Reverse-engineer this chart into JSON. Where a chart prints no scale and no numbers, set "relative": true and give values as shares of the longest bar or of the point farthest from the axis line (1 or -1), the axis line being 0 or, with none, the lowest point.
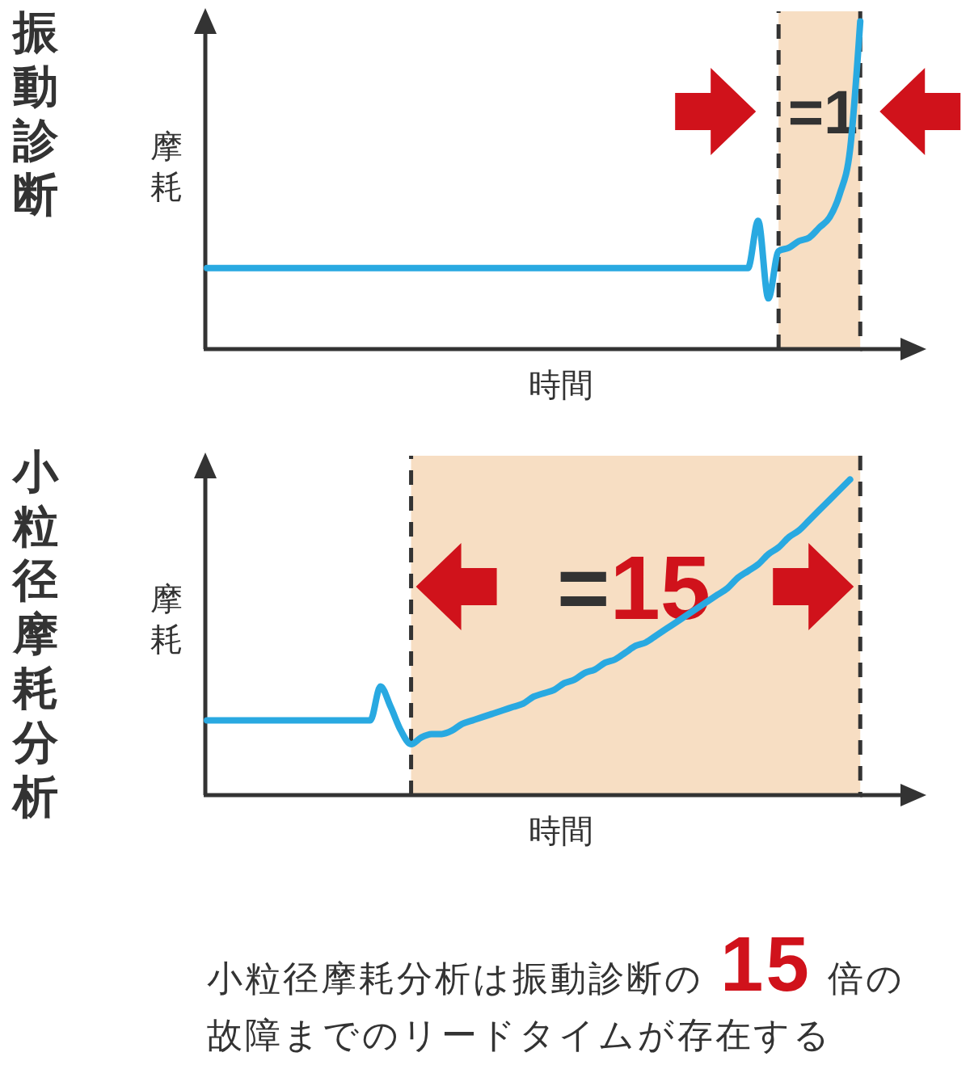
{
  "chart_data": [
    {
      "type": "line",
      "title": "振動診断",
      "xlabel": "時間",
      "ylabel": "摩耗",
      "relative": true,
      "categories": [
        null,
        null,
        null,
        null,
        null,
        null,
        null,
        null,
        null,
        null,
        null,
        null,
        null,
        null,
        null,
        null,
        null,
        null,
        null,
        null,
        null,
        null,
        null,
        null,
        null,
        null,
        null,
        null,
        null,
        null,
        null,
        null,
        null,
        null,
        null,
        null,
        null,
        null,
        null,
        null,
        null,
        null,
        null,
        null,
        null,
        null,
        null,
        null,
        null,
        null,
        null,
        null,
        null,
        null,
        null,
        null,
        null,
        null,
        null,
        null,
        null,
        null,
        null,
        null,
        null,
        null,
        null,
        null,
        null,
        null,
        null
      ],
      "series": [
        {
          "type": "area",
          "color": "#f7dec3",
          "values": [
            null,
            null,
            null,
            null,
            null,
            null,
            null,
            null,
            null,
            null,
            null,
            null,
            null,
            null,
            null,
            null,
            null,
            null,
            null,
            null,
            null,
            null,
            null,
            null,
            null,
            null,
            null,
            null,
            null,
            null,
            null,
            null,
            null,
            null,
            null,
            null,
            null,
            null,
            null,
            null,
            null,
            null,
            null,
            null,
            null,
            null,
            null,
            null,
            null,
            null,
            null,
            null,
            null,
            null,
            null,
            null,
            1,
            1,
            1,
            1,
            1,
            1,
            1,
            1,
            1,
            null,
            null,
            null,
            null,
            null,
            null
          ]
        },
        {
          "color": "#29a9e1",
          "values": [
            0.24,
            0.24,
            0.24,
            0.24,
            0.24,
            0.24,
            0.24,
            0.24,
            0.24,
            0.24,
            0.24,
            0.24,
            0.24,
            0.24,
            0.24,
            0.24,
            0.24,
            0.24,
            0.24,
            0.24,
            0.24,
            0.24,
            0.24,
            0.24,
            0.24,
            0.24,
            0.24,
            0.24,
            0.24,
            0.24,
            0.24,
            0.24,
            0.24,
            0.24,
            0.24,
            0.24,
            0.24,
            0.24,
            0.24,
            0.24,
            0.24,
            0.24,
            0.24,
            0.24,
            0.24,
            0.24,
            0.24,
            0.24,
            0.24,
            0.24,
            0.24,
            0.24,
            0.24,
            0.24,
            0.38,
            0.15,
            0.29,
            0.3,
            0.32,
            0.33,
            0.36,
            0.39,
            0.46,
            0.59,
            0.97,
            null,
            null,
            null,
            null,
            null,
            null
          ]
        }
      ],
      "annotations": [
        "=1"
      ]
    },
    {
      "type": "line",
      "title": "小粒径摩耗分析",
      "xlabel": "時間",
      "ylabel": "摩耗",
      "relative": true,
      "categories": [
        null,
        null,
        null,
        null,
        null,
        null,
        null,
        null,
        null,
        null,
        null,
        null,
        null,
        null,
        null,
        null,
        null,
        null,
        null,
        null,
        null,
        null,
        null,
        null,
        null,
        null,
        null,
        null,
        null,
        null,
        null,
        null,
        null,
        null,
        null,
        null,
        null,
        null,
        null,
        null,
        null,
        null,
        null,
        null,
        null,
        null,
        null,
        null,
        null,
        null,
        null,
        null,
        null,
        null,
        null,
        null,
        null,
        null,
        null,
        null,
        null,
        null,
        null,
        null,
        null,
        null,
        null,
        null,
        null,
        null,
        null
      ],
      "series": [
        {
          "type": "area",
          "color": "#f7dec3",
          "values": [
            null,
            null,
            null,
            null,
            null,
            null,
            null,
            null,
            null,
            null,
            null,
            null,
            null,
            null,
            null,
            null,
            null,
            null,
            null,
            null,
            1,
            1,
            1,
            1,
            1,
            1,
            1,
            1,
            1,
            1,
            1,
            1,
            1,
            1,
            1,
            1,
            1,
            1,
            1,
            1,
            1,
            1,
            1,
            1,
            1,
            1,
            1,
            1,
            1,
            1,
            1,
            1,
            1,
            1,
            1,
            1,
            1,
            1,
            1,
            1,
            1,
            1,
            1,
            1,
            1,
            null,
            null,
            null,
            null,
            null,
            null
          ]
        },
        {
          "color": "#29a9e1",
          "values": [
            0.22,
            0.22,
            0.22,
            0.22,
            0.22,
            0.22,
            0.22,
            0.22,
            0.22,
            0.22,
            0.22,
            0.22,
            0.22,
            0.22,
            0.22,
            0.22,
            0.22,
            0.32,
            0.26,
            0.19,
            0.15,
            0.17,
            0.18,
            0.18,
            0.19,
            0.21,
            0.22,
            0.23,
            0.24,
            0.25,
            0.26,
            0.27,
            0.29,
            0.3,
            0.31,
            0.33,
            0.34,
            0.36,
            0.37,
            0.39,
            0.4,
            0.42,
            0.44,
            0.45,
            0.47,
            0.49,
            0.51,
            0.53,
            0.55,
            0.57,
            0.59,
            0.61,
            0.64,
            0.66,
            0.68,
            0.71,
            0.73,
            0.76,
            0.78,
            0.81,
            0.84,
            0.87,
            0.9,
            0.93,
            null,
            null,
            null,
            null,
            null,
            null,
            null
          ]
        }
      ],
      "annotations": [
        "=15",
        "小粒径摩耗分析は振動診断の15倍の故障までのリードタイムが存在する"
      ]
    }
  ]
}
